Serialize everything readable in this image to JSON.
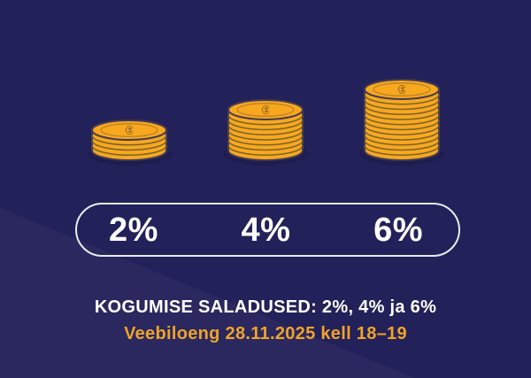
{
  "caption": {
    "line1": "KOGUMISE SALADUSED: 2%, 4% ja 6%",
    "line2": "Veebiloeng 28.11.2025 kell 18–19"
  },
  "coin_symbol": "€",
  "colors": {
    "background": "#232159",
    "background_highlight": "#2b2a66",
    "coin_gold": "#f7a81f",
    "coin_outline": "#433b52",
    "coin_arc": "#6e5a2e",
    "coin_ring": "#c08423",
    "euro_outline": "#5f4c22",
    "coin_shadow": "#1b1945",
    "pill_border": "#e9ebf5",
    "accent_orange": "#efa32a",
    "text_white": "#ffffff"
  },
  "chart_data": {
    "type": "bar",
    "variant": "pictograph-coin-stacks",
    "categories": [
      "2%",
      "4%",
      "6%"
    ],
    "values": [
      4,
      8,
      12
    ],
    "values_unit": "coins",
    "title": "KOGUMISE SALADUSED: 2%, 4% ja 6%",
    "annotation": "Veebiloeng 28.11.2025 kell 18–19",
    "xlabel": "",
    "ylabel": "",
    "grid": false,
    "legend": "none"
  }
}
